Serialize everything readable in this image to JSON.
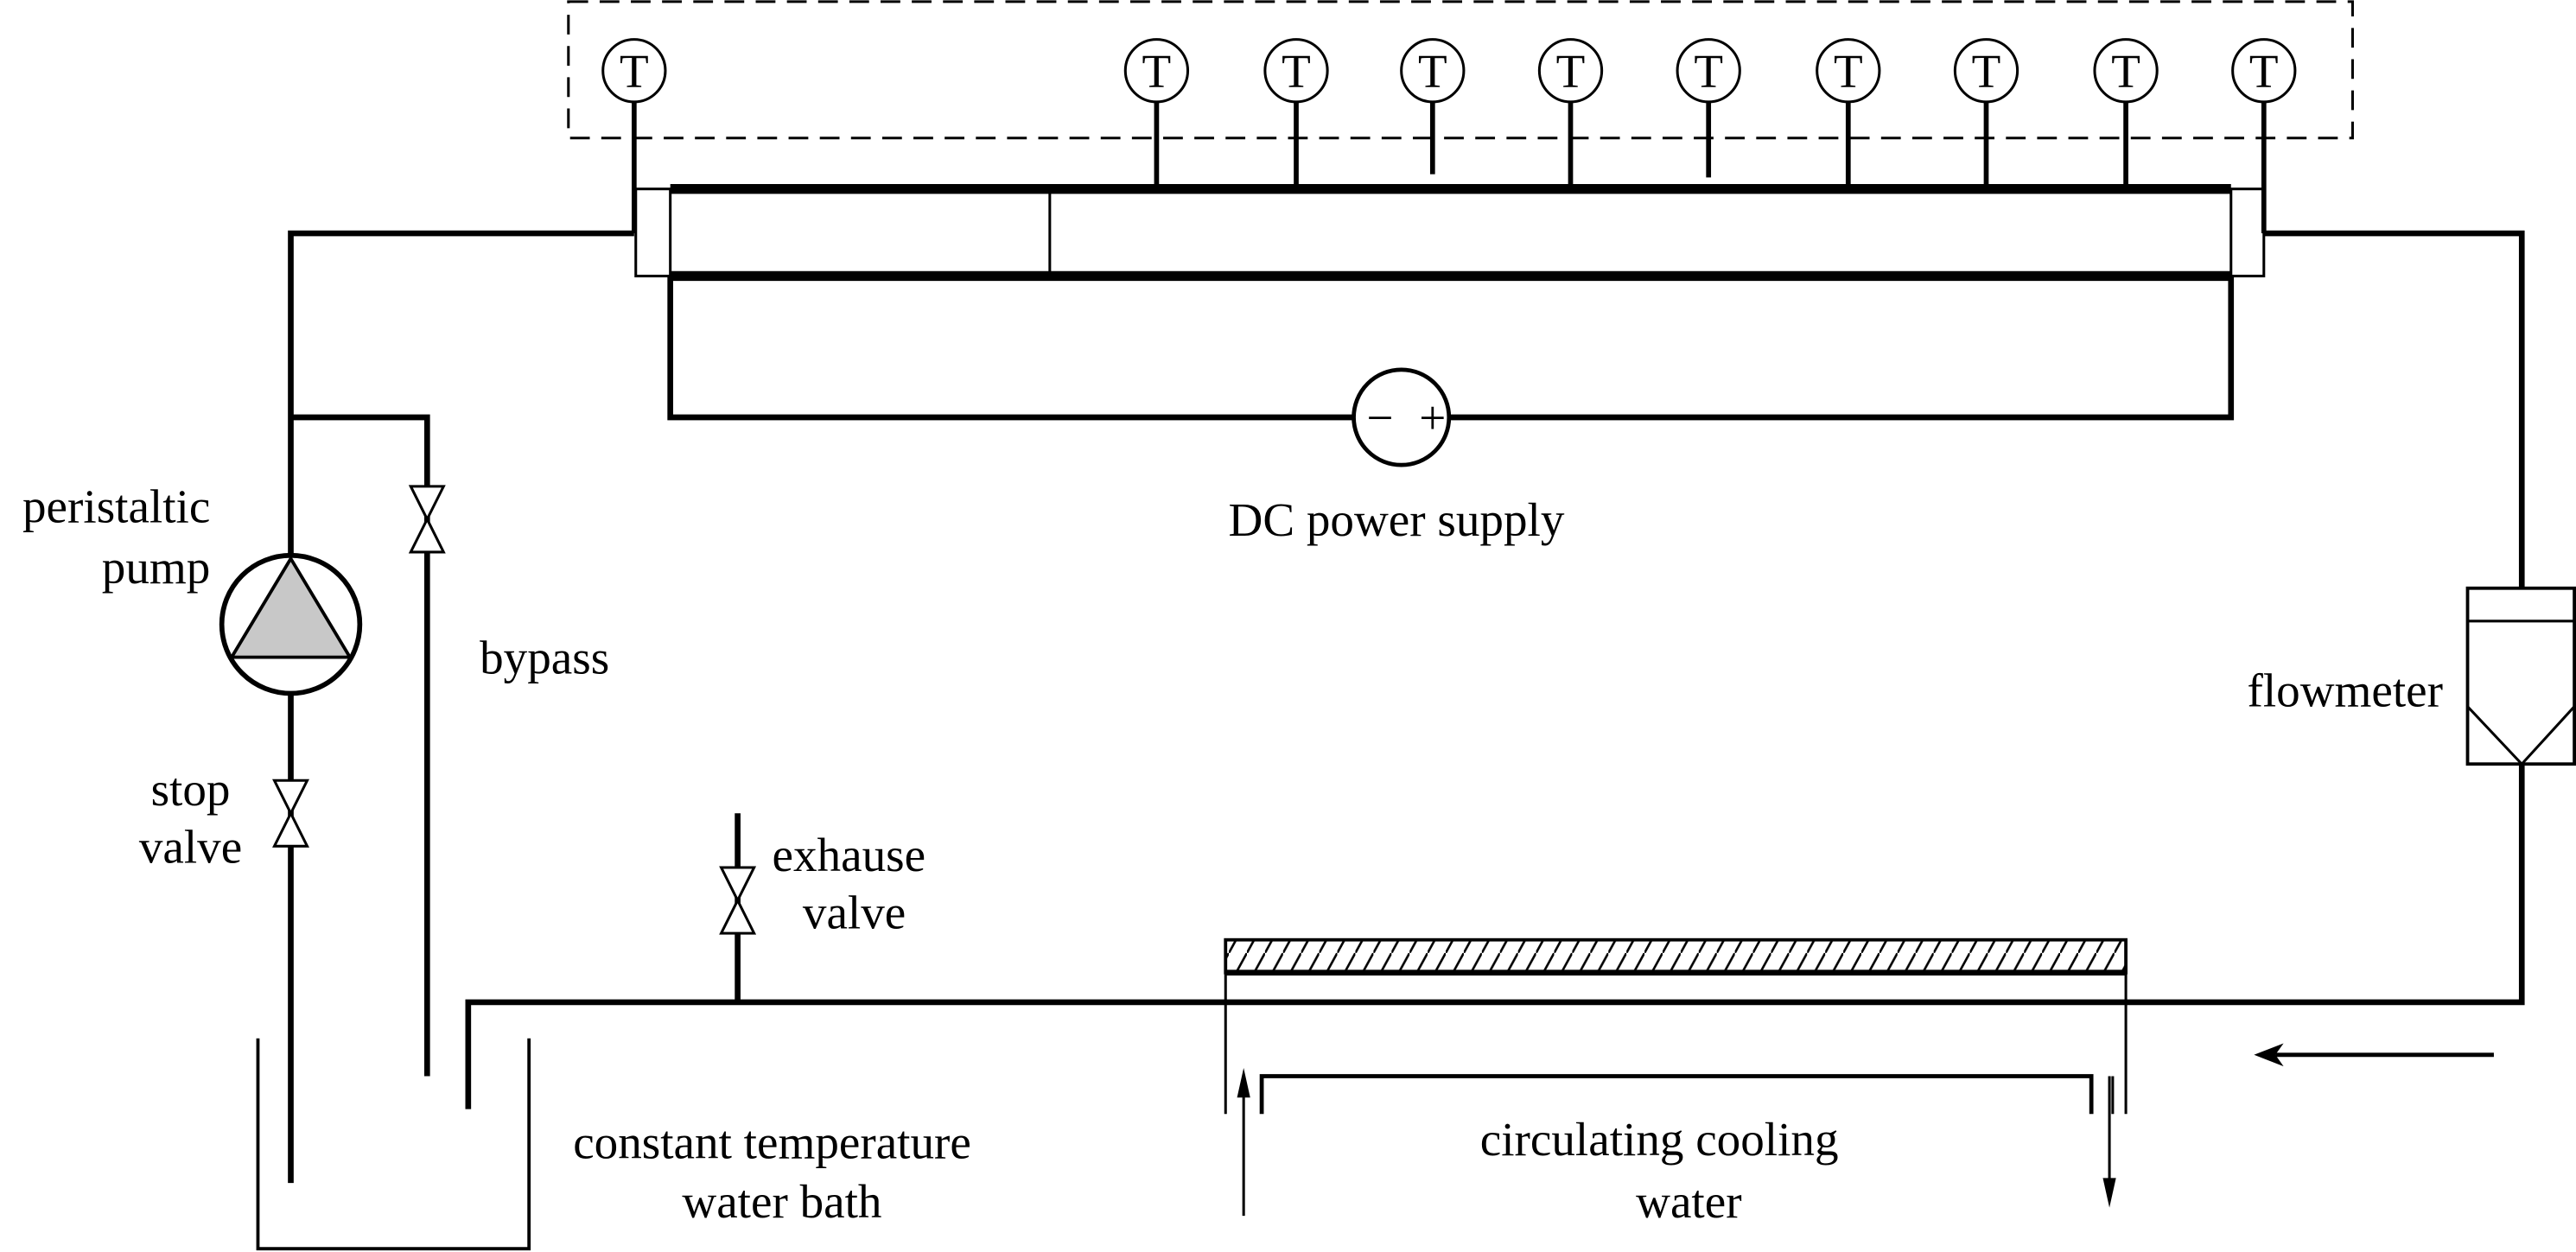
{
  "diagram": {
    "gauge_symbol": "T",
    "gauge_count": 10,
    "labels": {
      "pump_line1": "peristaltic",
      "pump_line2": "pump",
      "bypass": "bypass",
      "stop_valve_line1": "stop",
      "stop_valve_line2": "valve",
      "exhaust_valve_line1": "exhause",
      "exhaust_valve_line2": "valve",
      "power_supply": "DC power supply",
      "power_minus": "−",
      "power_plus": "+",
      "flowmeter": "flowmeter",
      "bath_line1": "constant temperature",
      "bath_line2": "water bath",
      "cooling_line1": "circulating cooling",
      "cooling_line2": "water"
    },
    "colors": {
      "line": "#000000",
      "pump_fill": "#c8c8c8",
      "background": "#ffffff"
    }
  }
}
